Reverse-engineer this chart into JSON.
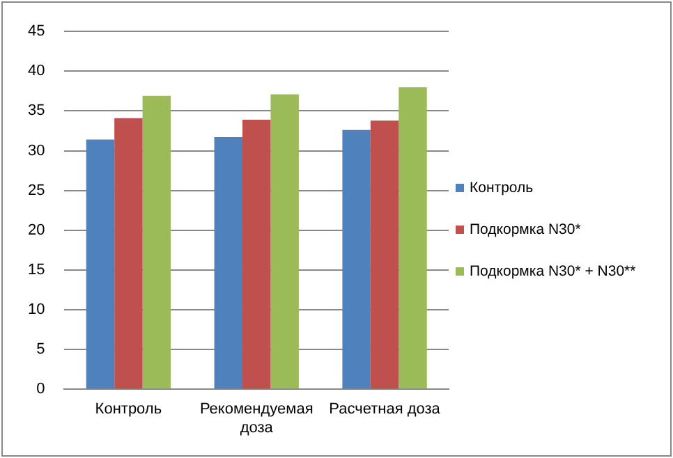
{
  "chart_data": {
    "type": "bar",
    "categories": [
      "Контроль",
      "Рекомендуемая доза",
      "Расчетная доза"
    ],
    "series": [
      {
        "name": "Контроль",
        "color": "#4f81bd",
        "values": [
          31.4,
          31.7,
          32.6
        ]
      },
      {
        "name": "Подкормка N30*",
        "color": "#c0504d",
        "values": [
          34.1,
          33.9,
          33.8
        ]
      },
      {
        "name": "Подкормка N30* + N30**",
        "color": "#9bbb59",
        "values": [
          36.9,
          37.1,
          38.0
        ]
      }
    ],
    "ylim": [
      0,
      45
    ],
    "yticks": [
      0,
      5,
      10,
      15,
      20,
      25,
      30,
      35,
      40,
      45
    ],
    "grid": "y",
    "legend": "right"
  }
}
